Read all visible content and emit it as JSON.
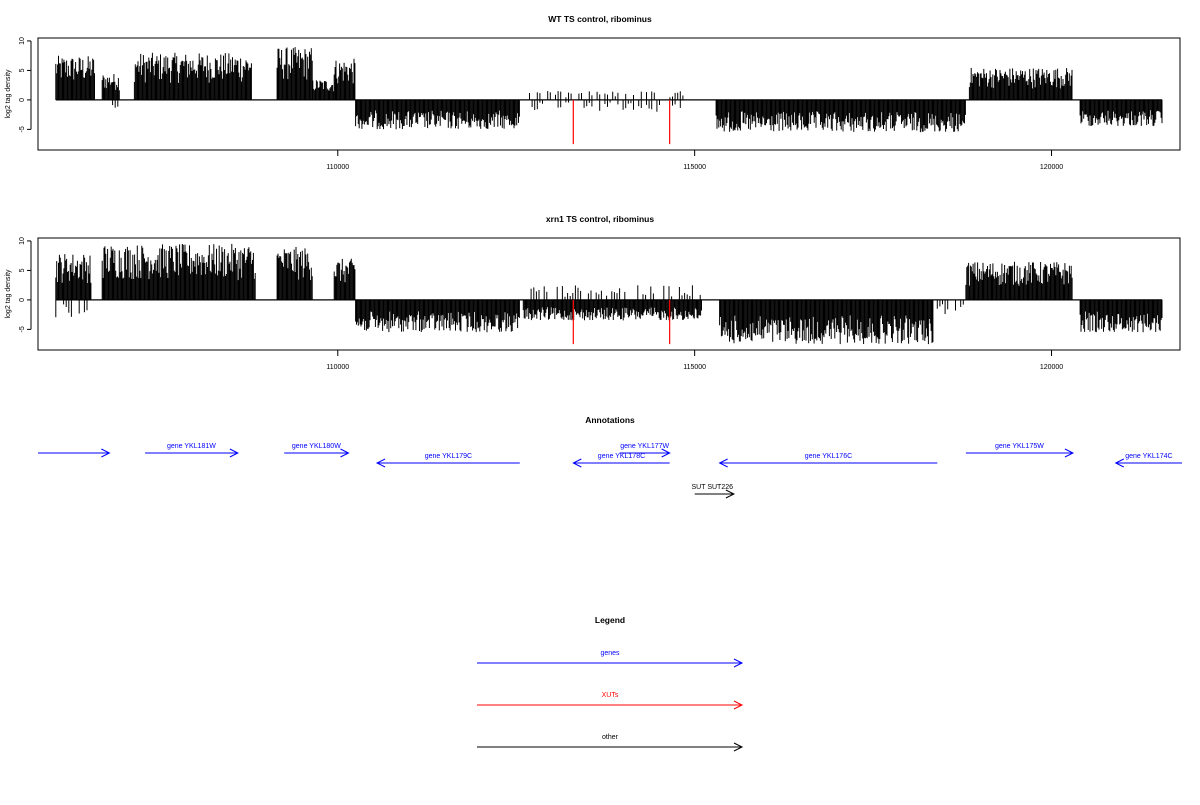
{
  "colors": {
    "genes": "#0000ff",
    "xuts": "#ff0000",
    "other": "#000000",
    "bars": "#000000"
  },
  "chart_data": [
    {
      "type": "bar",
      "title": "WT TS control, ribominus",
      "ylabel": "log2 tag density",
      "xlim": [
        105800,
        121800
      ],
      "ylim": [
        -8.5,
        10.5
      ],
      "yticks": [
        -5,
        0,
        5,
        10
      ],
      "xticks": [
        110000,
        115000,
        120000
      ],
      "segments": [
        {
          "start": 106050,
          "end": 106600,
          "sign": 1,
          "max": 7.5
        },
        {
          "start": 106700,
          "end": 106950,
          "sign": 1,
          "max": 4.5
        },
        {
          "start": 106700,
          "end": 106950,
          "sign": -1,
          "max": 1.5
        },
        {
          "start": 107150,
          "end": 108800,
          "sign": 1,
          "max": 8.0
        },
        {
          "start": 109150,
          "end": 109650,
          "sign": 1,
          "max": 9.0
        },
        {
          "start": 109650,
          "end": 109950,
          "sign": 1,
          "max": 3.5
        },
        {
          "start": 109950,
          "end": 110250,
          "sign": 1,
          "max": 7.0
        },
        {
          "start": 110250,
          "end": 112550,
          "sign": -1,
          "max": 5.0
        },
        {
          "start": 112650,
          "end": 114950,
          "sign": -1,
          "max": 2.0
        },
        {
          "start": 112650,
          "end": 114950,
          "sign": 1,
          "max": 1.5
        },
        {
          "start": 115300,
          "end": 118800,
          "sign": -1,
          "max": 5.5
        },
        {
          "start": 118850,
          "end": 120300,
          "sign": 1,
          "max": 5.5
        },
        {
          "start": 120400,
          "end": 121550,
          "sign": -1,
          "max": 4.5
        }
      ],
      "spikes": [
        {
          "x": 113300,
          "y": -7.5
        },
        {
          "x": 114650,
          "y": -7.5
        }
      ]
    },
    {
      "type": "bar",
      "title": "xrn1 TS control, ribominus",
      "ylabel": "log2 tag density",
      "xlim": [
        105800,
        121800
      ],
      "ylim": [
        -8.5,
        10.5
      ],
      "yticks": [
        -5,
        0,
        5,
        10
      ],
      "xticks": [
        110000,
        115000,
        120000
      ],
      "segments": [
        {
          "start": 106050,
          "end": 106550,
          "sign": 1,
          "max": 8.0
        },
        {
          "start": 106050,
          "end": 106550,
          "sign": -1,
          "max": 3.0
        },
        {
          "start": 106700,
          "end": 108850,
          "sign": 1,
          "max": 9.5
        },
        {
          "start": 109150,
          "end": 109650,
          "sign": 1,
          "max": 9.0
        },
        {
          "start": 109950,
          "end": 110250,
          "sign": 1,
          "max": 7.0
        },
        {
          "start": 110250,
          "end": 112550,
          "sign": -1,
          "max": 5.5
        },
        {
          "start": 112600,
          "end": 115100,
          "sign": -1,
          "max": 3.5
        },
        {
          "start": 112600,
          "end": 115100,
          "sign": 1,
          "max": 2.5
        },
        {
          "start": 115350,
          "end": 118350,
          "sign": -1,
          "max": 7.5
        },
        {
          "start": 118400,
          "end": 118800,
          "sign": -1,
          "max": 2.5
        },
        {
          "start": 118800,
          "end": 120300,
          "sign": 1,
          "max": 6.5
        },
        {
          "start": 120400,
          "end": 121550,
          "sign": -1,
          "max": 5.5
        }
      ],
      "spikes": [
        {
          "x": 113300,
          "y": -7.5
        },
        {
          "x": 114650,
          "y": -7.5
        }
      ]
    }
  ],
  "annotations": {
    "title": "Annotations",
    "features": [
      {
        "kind": "genes",
        "start": 105800,
        "end": 106800,
        "dir": "+",
        "label": ""
      },
      {
        "kind": "genes",
        "start": 107300,
        "end": 108600,
        "dir": "+",
        "label": "gene YKL181W"
      },
      {
        "kind": "genes",
        "start": 109250,
        "end": 110150,
        "dir": "+",
        "label": "gene YKL180W"
      },
      {
        "kind": "genes",
        "start": 110550,
        "end": 112550,
        "dir": "-",
        "label": "gene YKL179C"
      },
      {
        "kind": "genes",
        "start": 113300,
        "end": 114650,
        "dir": "-",
        "label": "gene YKL178C"
      },
      {
        "kind": "genes",
        "start": 113950,
        "end": 114650,
        "dir": "+",
        "label": "gene YKL177W"
      },
      {
        "kind": "genes",
        "start": 115350,
        "end": 118400,
        "dir": "-",
        "label": "gene YKL176C"
      },
      {
        "kind": "genes",
        "start": 118800,
        "end": 120300,
        "dir": "+",
        "label": "gene YKL175W"
      },
      {
        "kind": "genes",
        "start": 120900,
        "end": 122500,
        "dir": "-",
        "label": "gene YKL174C"
      },
      {
        "kind": "other",
        "start": 115000,
        "end": 115550,
        "dir": "+",
        "label": "SUT SUT226"
      }
    ]
  },
  "legend": {
    "title": "Legend",
    "items": [
      {
        "kind": "genes",
        "label": "genes"
      },
      {
        "kind": "xuts",
        "label": "XUTs"
      },
      {
        "kind": "other",
        "label": "other"
      }
    ]
  }
}
